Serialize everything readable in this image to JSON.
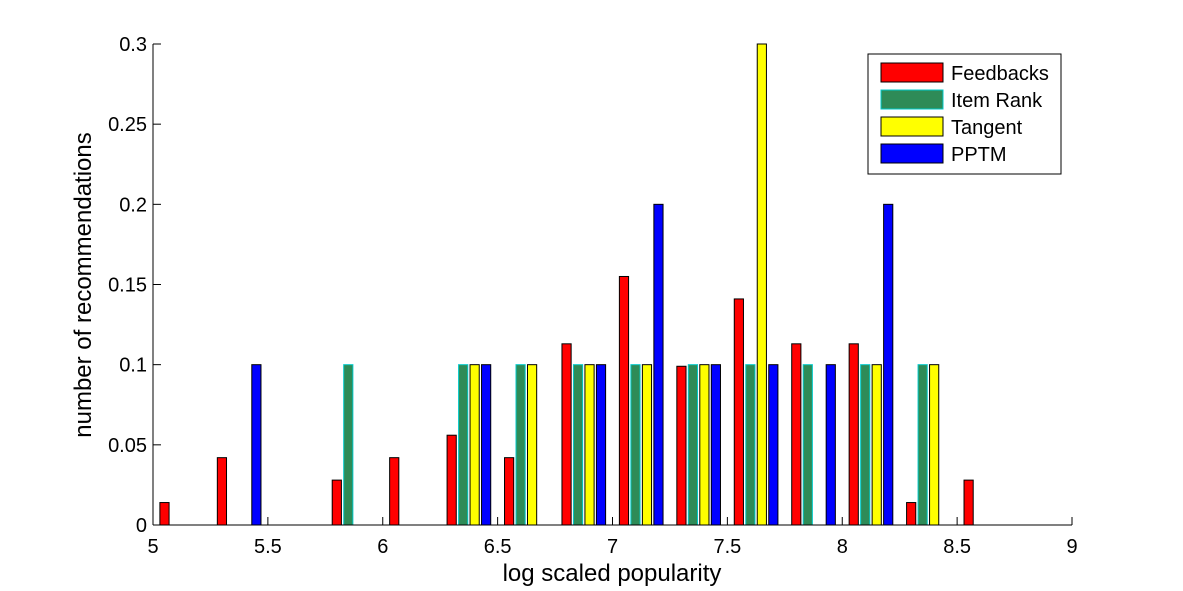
{
  "chart_data": {
    "type": "bar",
    "title": "",
    "xlabel": "log scaled popularity",
    "ylabel": "number of recommendations",
    "xlim": [
      5,
      9
    ],
    "ylim": [
      0,
      0.3
    ],
    "xticks": [
      "5",
      "5.5",
      "6",
      "6.5",
      "7",
      "7.5",
      "8",
      "8.5",
      "9"
    ],
    "yticks": [
      "0",
      "0.05",
      "0.1",
      "0.15",
      "0.2",
      "0.25",
      "0.3"
    ],
    "grid": false,
    "legend_position": "top-right",
    "bin_centers": [
      5.125,
      5.375,
      5.625,
      5.875,
      6.125,
      6.375,
      6.625,
      6.875,
      7.125,
      7.375,
      7.625,
      7.875,
      8.125,
      8.375,
      8.625,
      8.875
    ],
    "series": [
      {
        "name": "Feedbacks",
        "color": "#ff0000",
        "values": [
          0.014,
          0.042,
          0.0,
          0.028,
          0.042,
          0.056,
          0.042,
          0.113,
          0.155,
          0.099,
          0.141,
          0.113,
          0.113,
          0.014,
          0.028,
          0.0
        ]
      },
      {
        "name": "Item Rank",
        "color": "#2e8b57",
        "edge": "#00c8c8",
        "values": [
          0.0,
          0.0,
          0.0,
          0.1,
          0.0,
          0.1,
          0.1,
          0.1,
          0.1,
          0.1,
          0.1,
          0.1,
          0.1,
          0.1,
          0.0,
          0.0
        ]
      },
      {
        "name": "Tangent",
        "color": "#ffff00",
        "values": [
          0.0,
          0.0,
          0.0,
          0.0,
          0.0,
          0.1,
          0.1,
          0.1,
          0.1,
          0.1,
          0.3,
          0.0,
          0.1,
          0.1,
          0.0,
          0.0
        ]
      },
      {
        "name": "PPTM",
        "color": "#0000ff",
        "values": [
          0.0,
          0.1,
          0.0,
          0.0,
          0.0,
          0.1,
          0.0,
          0.1,
          0.2,
          0.1,
          0.1,
          0.1,
          0.2,
          0.0,
          0.0,
          0.0
        ]
      }
    ]
  }
}
